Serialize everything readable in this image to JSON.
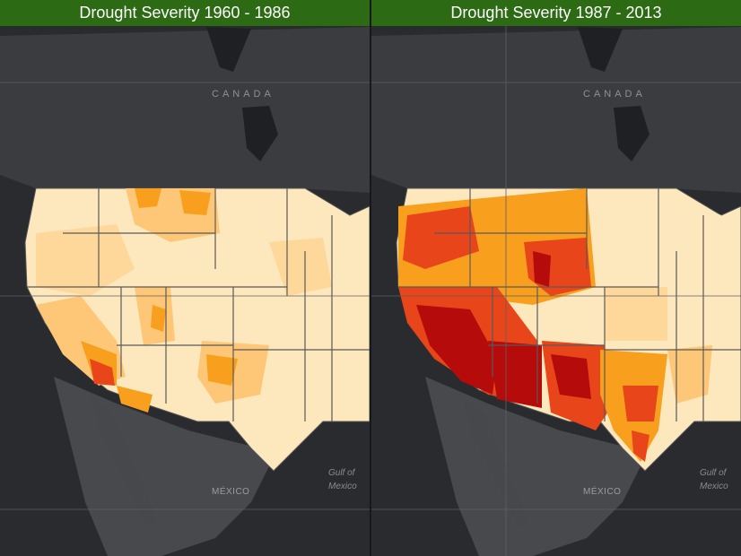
{
  "panels": [
    {
      "title": "Drought Severity 1960 - 1986"
    },
    {
      "title": "Drought Severity 1987 - 2013"
    }
  ],
  "map_labels": {
    "country_north": "CANADA",
    "country_south": "MÉXICO",
    "gulf_line1": "Gulf of",
    "gulf_line2": "Mexico"
  },
  "colors": {
    "title_bar": "#2c6a14",
    "land": "#4a4b4f",
    "water": "#2a2b2f",
    "severity_low": "#fde7bd",
    "severity_moderate": "#fdc777",
    "severity_high": "#f8a01e",
    "severity_severe": "#e8461a",
    "severity_extreme": "#b50b0b"
  }
}
